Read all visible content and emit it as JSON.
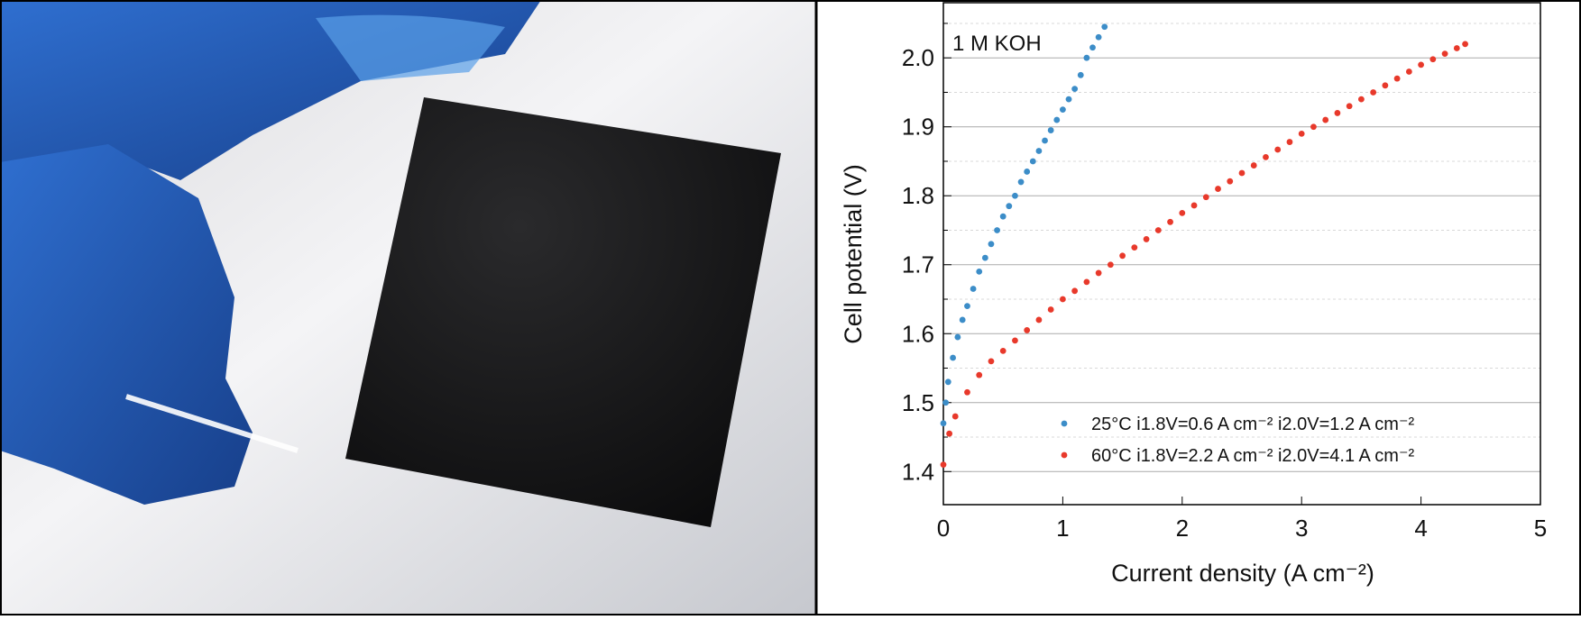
{
  "chart_data": {
    "type": "scatter",
    "annotation": "1 M KOH",
    "x_label": "Current density (A cm⁻²)",
    "y_label": "Cell potential (V)",
    "xlim": [
      0,
      5
    ],
    "ylim": [
      1.352,
      2.08
    ],
    "xticks": [
      0,
      1,
      2,
      3,
      4,
      5
    ],
    "yticks": [
      1.4,
      1.5,
      1.6,
      1.7,
      1.8,
      1.9,
      {
        "value": 2,
        "label": "2.0"
      }
    ],
    "minor_yticks": [
      1.45,
      1.55,
      1.65,
      1.75,
      1.85,
      1.95,
      2.05
    ],
    "grid": true,
    "series": [
      {
        "name": "25°C  i1.8V=0.6 A cm⁻² i2.0V=1.2 A cm⁻²",
        "color": "#3c8dc8",
        "x": [
          0,
          0.02,
          0.04,
          0.08,
          0.12,
          0.16,
          0.2,
          0.25,
          0.3,
          0.35,
          0.4,
          0.45,
          0.5,
          0.55,
          0.6,
          0.65,
          0.7,
          0.75,
          0.8,
          0.85,
          0.9,
          0.95,
          1.0,
          1.05,
          1.1,
          1.15,
          1.2,
          1.25,
          1.3,
          1.35
        ],
        "values": [
          1.47,
          1.5,
          1.53,
          1.565,
          1.595,
          1.62,
          1.64,
          1.665,
          1.69,
          1.71,
          1.73,
          1.75,
          1.77,
          1.785,
          1.8,
          1.82,
          1.835,
          1.85,
          1.865,
          1.88,
          1.895,
          1.91,
          1.925,
          1.94,
          1.955,
          1.975,
          2.0,
          2.015,
          2.03,
          2.045
        ]
      },
      {
        "name": "60°C  i1.8V=2.2 A cm⁻² i2.0V=4.1 A cm⁻²",
        "color": "#e8392b",
        "x": [
          0,
          0.05,
          0.1,
          0.2,
          0.3,
          0.4,
          0.5,
          0.6,
          0.7,
          0.8,
          0.9,
          1.0,
          1.1,
          1.2,
          1.3,
          1.4,
          1.5,
          1.6,
          1.7,
          1.8,
          1.9,
          2.0,
          2.1,
          2.2,
          2.3,
          2.4,
          2.5,
          2.6,
          2.7,
          2.8,
          2.9,
          3.0,
          3.1,
          3.2,
          3.3,
          3.4,
          3.5,
          3.6,
          3.7,
          3.8,
          3.9,
          4.0,
          4.1,
          4.2,
          4.3,
          4.37
        ],
        "values": [
          1.41,
          1.455,
          1.48,
          1.515,
          1.54,
          1.56,
          1.575,
          1.59,
          1.605,
          1.62,
          1.635,
          1.65,
          1.662,
          1.675,
          1.688,
          1.7,
          1.713,
          1.725,
          1.737,
          1.75,
          1.762,
          1.775,
          1.786,
          1.798,
          1.81,
          1.821,
          1.833,
          1.844,
          1.856,
          1.867,
          1.878,
          1.89,
          1.9,
          1.91,
          1.92,
          1.93,
          1.94,
          1.95,
          1.96,
          1.97,
          1.98,
          1.99,
          1.998,
          2.006,
          2.014,
          2.02
        ]
      }
    ]
  }
}
